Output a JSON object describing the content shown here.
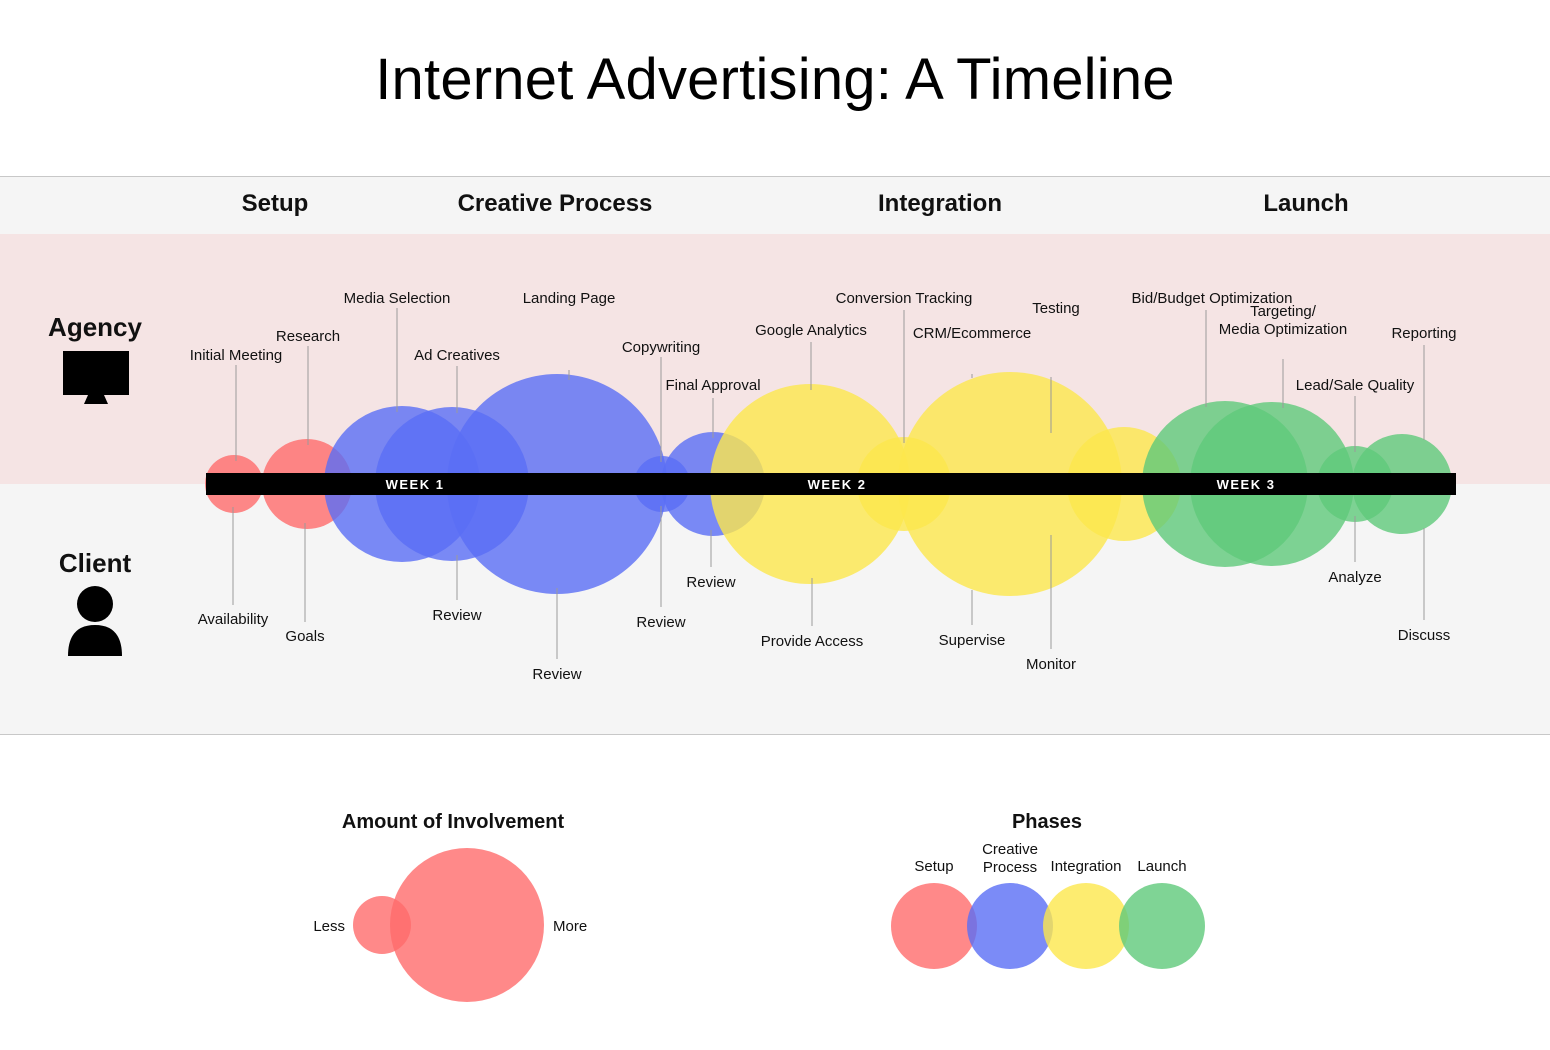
{
  "title": "Internet Advertising: A Timeline",
  "phases": [
    "Setup",
    "Creative Process",
    "Integration",
    "Launch"
  ],
  "roles": {
    "agency": "Agency",
    "client": "Client",
    "agency_icon": "monitor-icon",
    "client_icon": "person-icon"
  },
  "colors": {
    "setup": "#ff6b6b",
    "creative": "#5a6ef5",
    "integration": "#fde74c",
    "launch": "#5fc97a",
    "timeline_bar": "#000000"
  },
  "timeline": {
    "weeks": [
      "WEEK 1",
      "WEEK 2",
      "WEEK 3"
    ]
  },
  "tasks": [
    {
      "phase": "setup",
      "agency": "Initial Meeting",
      "client": "Availability",
      "involvement": 1
    },
    {
      "phase": "setup",
      "agency": "Research",
      "client": "Goals",
      "involvement": 2
    },
    {
      "phase": "creative",
      "agency": "Media Selection",
      "client": "",
      "involvement": 3
    },
    {
      "phase": "creative",
      "agency": "Ad Creatives",
      "client": "Review",
      "involvement": 3
    },
    {
      "phase": "creative",
      "agency": "Landing Page",
      "client": "Review",
      "involvement": 5
    },
    {
      "phase": "creative",
      "agency": "Copywriting",
      "client": "Review",
      "involvement": 1
    },
    {
      "phase": "creative",
      "agency": "Final Approval",
      "client": "Review",
      "involvement": 2
    },
    {
      "phase": "integration",
      "agency": "Google Analytics",
      "client": "Provide Access",
      "involvement": 4
    },
    {
      "phase": "integration",
      "agency": "Conversion Tracking",
      "client": "",
      "involvement": 2
    },
    {
      "phase": "integration",
      "agency": "CRM/Ecommerce",
      "client": "Supervise",
      "involvement": 5
    },
    {
      "phase": "integration",
      "agency": "Testing",
      "client": "Monitor",
      "involvement": 2
    },
    {
      "phase": "launch",
      "agency": "Bid/Budget Optimization",
      "client": "",
      "involvement": 4
    },
    {
      "phase": "launch",
      "agency": "Targeting/\nMedia Optimization",
      "client": "",
      "involvement": 4
    },
    {
      "phase": "launch",
      "agency": "Lead/Sale Quality",
      "client": "Analyze",
      "involvement": 1
    },
    {
      "phase": "launch",
      "agency": "Reporting",
      "client": "Discuss",
      "involvement": 2
    }
  ],
  "legend": {
    "involvement": {
      "title": "Amount of Involvement",
      "less": "Less",
      "more": "More"
    },
    "phases": {
      "title": "Phases",
      "items": [
        {
          "key": "setup",
          "label": "Setup"
        },
        {
          "key": "creative",
          "label": "Creative\nProcess"
        },
        {
          "key": "integration",
          "label": "Integration"
        },
        {
          "key": "launch",
          "label": "Launch"
        }
      ]
    }
  }
}
